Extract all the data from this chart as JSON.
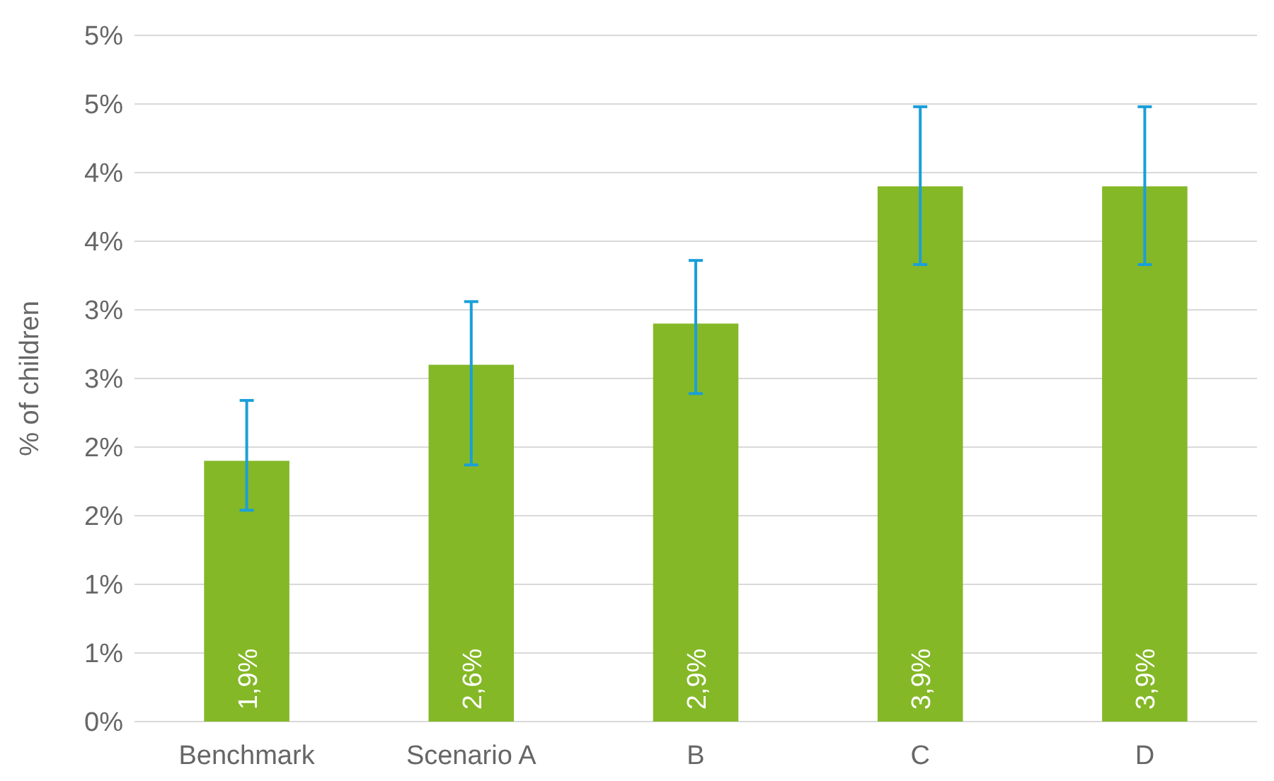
{
  "chart_data": {
    "type": "bar",
    "ylabel": "% of children",
    "categories": [
      "Benchmark",
      "Scenario A",
      "B",
      "C",
      "D"
    ],
    "series": [
      {
        "color": "#84b827",
        "values": [
          1.9,
          2.6,
          2.9,
          3.9,
          3.9
        ],
        "errors": [
          [
            1.54,
            2.34
          ],
          [
            1.87,
            3.06
          ],
          [
            2.39,
            3.36
          ],
          [
            3.33,
            4.48
          ],
          [
            3.33,
            4.48
          ]
        ],
        "value_labels": [
          "1,9%",
          "2,6%",
          "2,9%",
          "3,9%",
          "3,9%"
        ]
      }
    ],
    "ylim": [
      0,
      5
    ],
    "yticks": [
      {
        "value": 0,
        "label": "0%"
      },
      {
        "value": 0.5,
        "label": "1%"
      },
      {
        "value": 1,
        "label": "1%"
      },
      {
        "value": 1.5,
        "label": "2%"
      },
      {
        "value": 2,
        "label": "2%"
      },
      {
        "value": 2.5,
        "label": "3%"
      },
      {
        "value": 3,
        "label": "3%"
      },
      {
        "value": 3.5,
        "label": "4%"
      },
      {
        "value": 4,
        "label": "4%"
      },
      {
        "value": 4.5,
        "label": "5%"
      },
      {
        "value": 5,
        "label": "5%"
      }
    ],
    "grid": "y"
  }
}
